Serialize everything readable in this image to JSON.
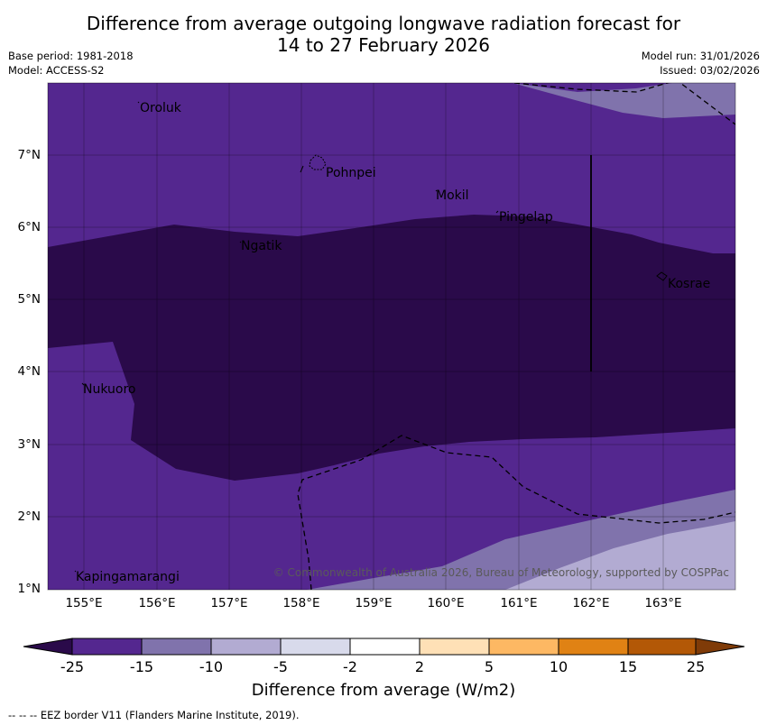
{
  "title": {
    "line1": "Difference from average outgoing longwave radiation forecast for",
    "line2": "14 to 27 February 2026"
  },
  "meta": {
    "base_period": "Base period: 1981-2018",
    "model": "Model: ACCESS-S2",
    "model_run": "Model run: 31/01/2026",
    "issued": "Issued: 03/02/2026"
  },
  "axes": {
    "longitudes": [
      "155°E",
      "156°E",
      "157°E",
      "158°E",
      "159°E",
      "160°E",
      "161°E",
      "162°E",
      "163°E"
    ],
    "latitudes": [
      "7°N",
      "6°N",
      "5°N",
      "4°N",
      "3°N",
      "2°N",
      "1°N"
    ]
  },
  "places": {
    "oroluk": "Oroluk",
    "pohnpei": "Pohnpei",
    "mokil": "Mokil",
    "pingelap": "Pingelap",
    "ngatik": "Ngatik",
    "kosrae": "Kosrae",
    "nukuoro": "Nukuoro",
    "kapingamarangi": "Kapingamarangi"
  },
  "copyright": "© Commonwealth of Australia 2026, Bureau of Meteorology, supported by COSPPac",
  "colorbar": {
    "ticks": [
      "-25",
      "-15",
      "-10",
      "-5",
      "-2",
      "2",
      "5",
      "10",
      "15",
      "25"
    ],
    "colors": {
      "below": "#2a0a4a",
      "c1": "#54278f",
      "c2": "#8073ac",
      "c3": "#b2abd2",
      "c4": "#d8daeb",
      "c5": "#ffffff",
      "c6": "#fee0b6",
      "c7": "#fdb863",
      "c8": "#e08214",
      "c9": "#b35806",
      "above": "#7f3b08"
    },
    "label": "Difference from average (W/m2)"
  },
  "footer": "--  --  -- EEZ border V11 (Flanders Marine Institute, 2019)."
}
